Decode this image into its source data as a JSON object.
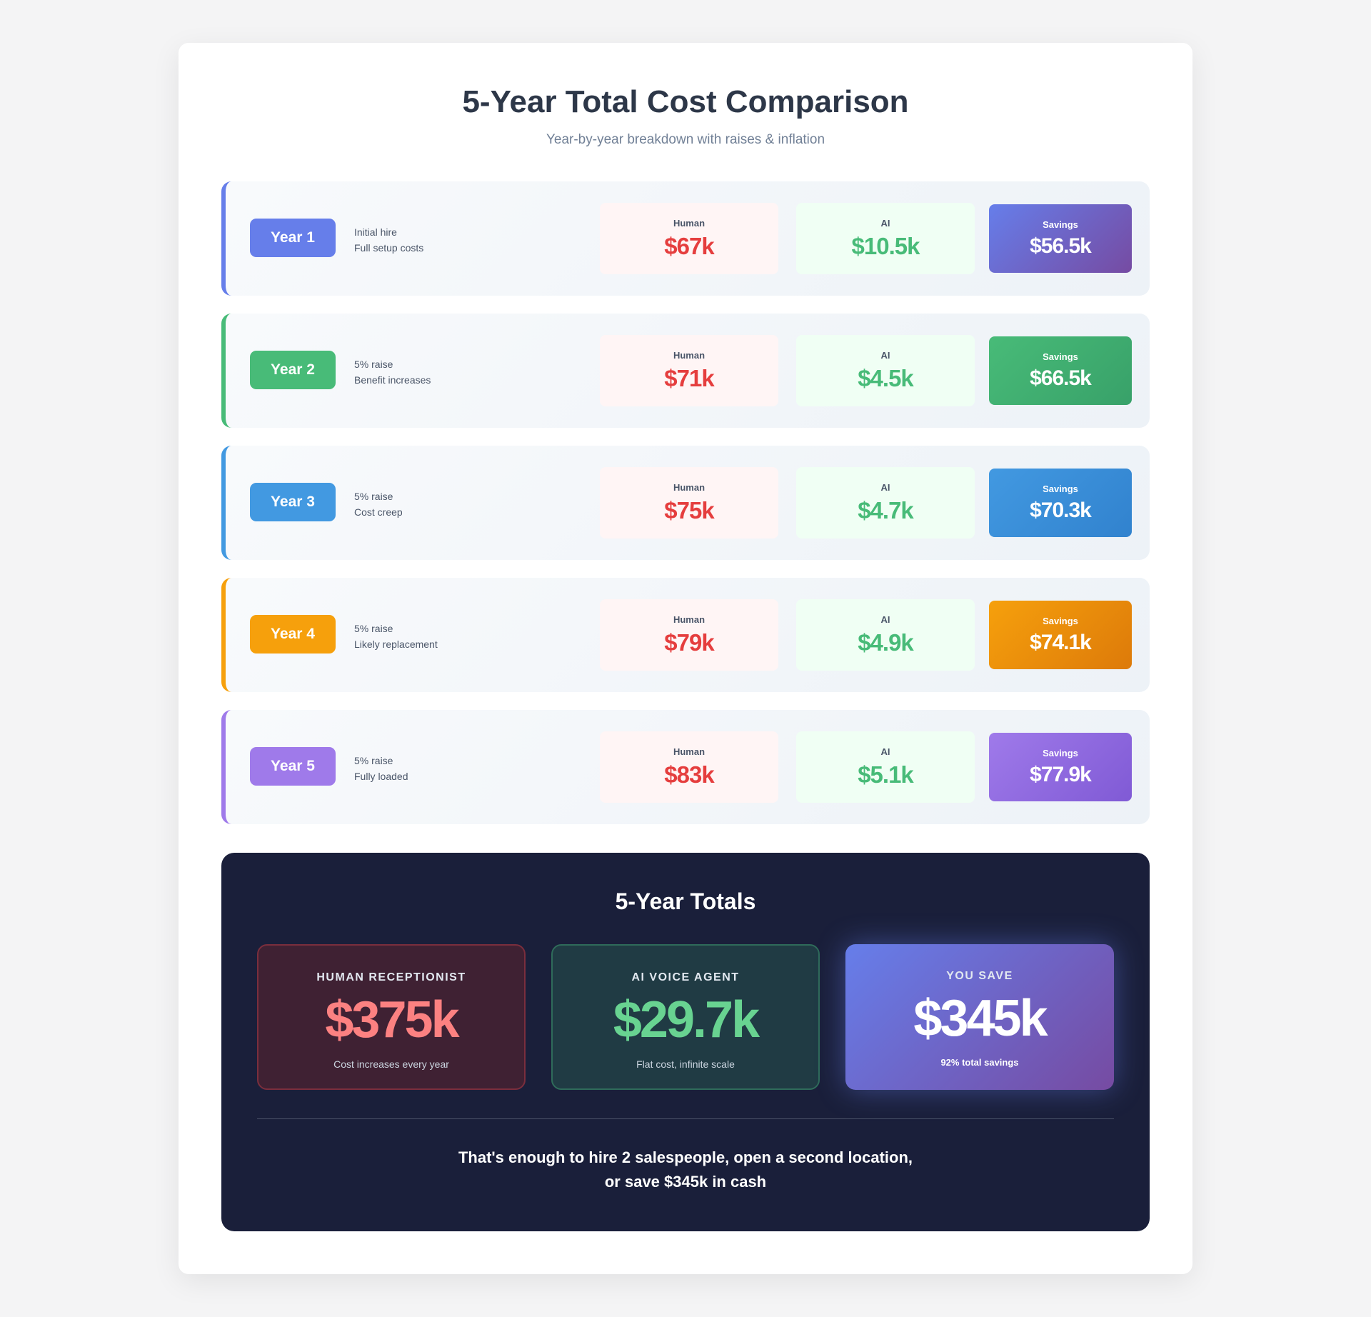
{
  "header": {
    "title": "5-Year Total Cost Comparison",
    "subtitle": "Year-by-year breakdown with raises & inflation"
  },
  "labels": {
    "human": "Human",
    "ai": "AI",
    "savings": "Savings"
  },
  "years": [
    {
      "badge": "Year 1",
      "note1": "Initial hire",
      "note2": "Full setup costs",
      "human": "$67k",
      "ai": "$10.5k",
      "savings": "$56.5k",
      "color": "#667eea",
      "gradient": [
        "#667eea",
        "#764ba2"
      ]
    },
    {
      "badge": "Year 2",
      "note1": "5% raise",
      "note2": "Benefit increases",
      "human": "$71k",
      "ai": "$4.5k",
      "savings": "$66.5k",
      "color": "#48bb78",
      "gradient": [
        "#48bb78",
        "#38a169"
      ]
    },
    {
      "badge": "Year 3",
      "note1": "5% raise",
      "note2": "Cost creep",
      "human": "$75k",
      "ai": "$4.7k",
      "savings": "$70.3k",
      "color": "#4299e1",
      "gradient": [
        "#4299e1",
        "#3182ce"
      ]
    },
    {
      "badge": "Year 4",
      "note1": "5% raise",
      "note2": "Likely replacement",
      "human": "$79k",
      "ai": "$4.9k",
      "savings": "$74.1k",
      "color": "#f6a00c",
      "gradient": [
        "#f6a00c",
        "#dd7a0a"
      ]
    },
    {
      "badge": "Year 5",
      "note1": "5% raise",
      "note2": "Fully loaded",
      "human": "$83k",
      "ai": "$5.1k",
      "savings": "$77.9k",
      "color": "#9f7aea",
      "gradient": [
        "#9f7aea",
        "#805ad5"
      ]
    }
  ],
  "totals": {
    "title": "5-Year Totals",
    "human": {
      "label": "HUMAN RECEPTIONIST",
      "value": "$375k",
      "note": "Cost increases every year"
    },
    "ai": {
      "label": "AI VOICE AGENT",
      "value": "$29.7k",
      "note": "Flat cost, infinite scale"
    },
    "save": {
      "label": "YOU SAVE",
      "value": "$345k",
      "note": "92% total savings"
    },
    "closing_line1": "That's enough to hire 2 salespeople, open a second location,",
    "closing_line2": "or save $345k in cash"
  }
}
